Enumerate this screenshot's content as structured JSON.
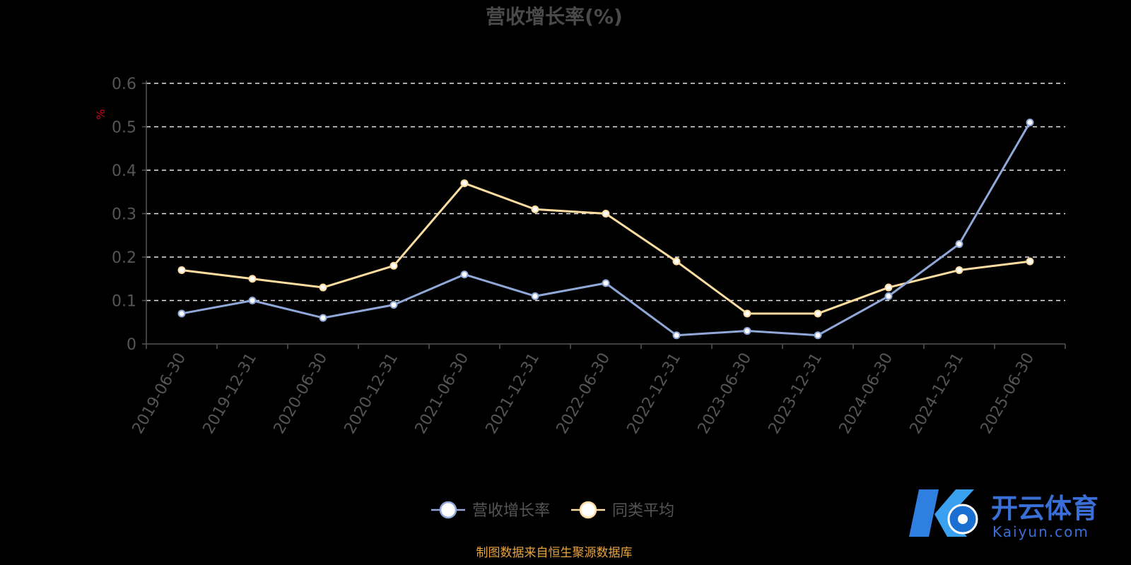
{
  "chart_data": {
    "type": "line",
    "title": "营收增长率(%)",
    "ylabel": "%",
    "ylim": [
      0,
      0.6
    ],
    "yticks": [
      "0",
      "0.1",
      "0.2",
      "0.3",
      "0.4",
      "0.5",
      "0.6"
    ],
    "grid": true,
    "legend_position": "bottom-center",
    "categories": [
      "2019-06-30",
      "2019-12-31",
      "2020-06-30",
      "2020-12-31",
      "2021-06-30",
      "2021-12-31",
      "2022-06-30",
      "2022-12-31",
      "2023-06-30",
      "2023-12-31",
      "2024-06-30",
      "2024-12-31",
      "2025-06-30"
    ],
    "series": [
      {
        "name": "营收增长率",
        "color": "#8fa8d8",
        "values": [
          0.07,
          0.1,
          0.06,
          0.09,
          0.16,
          0.11,
          0.14,
          0.02,
          0.03,
          0.02,
          0.11,
          0.23,
          0.51
        ]
      },
      {
        "name": "同类平均",
        "color": "#fddca0",
        "values": [
          0.17,
          0.15,
          0.13,
          0.18,
          0.37,
          0.31,
          0.3,
          0.19,
          0.07,
          0.07,
          0.13,
          0.17,
          0.19
        ]
      }
    ]
  },
  "source_note": "制图数据来自恒生聚源数据库",
  "watermark": {
    "brand_cn": "开云体育",
    "brand_en": "Kaiyun.com",
    "logo": "k-football-logo-icon"
  }
}
